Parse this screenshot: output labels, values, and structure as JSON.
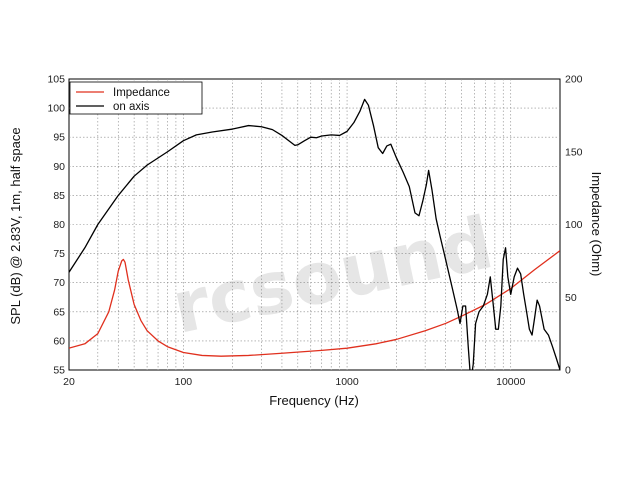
{
  "chart_data": {
    "type": "line",
    "xlabel": "Frequency (Hz)",
    "ylabel": "SPL (dB) @ 2.83V, 1m, half space",
    "y2label": "Impedance (Ohm)",
    "xscale": "log",
    "xlim": [
      20,
      20000
    ],
    "ylim": [
      55,
      105
    ],
    "y2lim": [
      0,
      200
    ],
    "x_ticks": [
      20,
      100,
      1000,
      10000
    ],
    "x_tick_labels": [
      "20",
      "100",
      "1000",
      "10000"
    ],
    "y_ticks": [
      55,
      60,
      65,
      70,
      75,
      80,
      85,
      90,
      95,
      100,
      105
    ],
    "y2_ticks": [
      0,
      50,
      100,
      150,
      200
    ],
    "grid": true,
    "legend_position": "top-left",
    "watermark": "rcsound",
    "colors": {
      "Impedance": "#e0301e",
      "on axis": "#000000"
    },
    "series": [
      {
        "name": "Impedance",
        "axis": "right",
        "points": [
          [
            20,
            15
          ],
          [
            25,
            18
          ],
          [
            30,
            25
          ],
          [
            35,
            40
          ],
          [
            38,
            55
          ],
          [
            40,
            68
          ],
          [
            42,
            75
          ],
          [
            43,
            76
          ],
          [
            44,
            74
          ],
          [
            46,
            62
          ],
          [
            50,
            45
          ],
          [
            55,
            34
          ],
          [
            60,
            27
          ],
          [
            70,
            20
          ],
          [
            80,
            16
          ],
          [
            100,
            12
          ],
          [
            130,
            10
          ],
          [
            170,
            9.5
          ],
          [
            250,
            10
          ],
          [
            400,
            11.5
          ],
          [
            700,
            13.5
          ],
          [
            1000,
            15
          ],
          [
            1500,
            18
          ],
          [
            2000,
            21
          ],
          [
            3000,
            27
          ],
          [
            4000,
            32
          ],
          [
            5000,
            37
          ],
          [
            7000,
            45
          ],
          [
            10000,
            56
          ],
          [
            14000,
            69
          ],
          [
            20000,
            82
          ]
        ]
      },
      {
        "name": "on axis",
        "axis": "left",
        "points": [
          [
            20,
            71.8
          ],
          [
            25,
            76
          ],
          [
            30,
            80
          ],
          [
            40,
            85
          ],
          [
            50,
            88.3
          ],
          [
            60,
            90.2
          ],
          [
            80,
            92.5
          ],
          [
            100,
            94.4
          ],
          [
            120,
            95.4
          ],
          [
            150,
            95.9
          ],
          [
            200,
            96.4
          ],
          [
            250,
            97
          ],
          [
            300,
            96.8
          ],
          [
            350,
            96.3
          ],
          [
            400,
            95.3
          ],
          [
            450,
            94.2
          ],
          [
            480,
            93.6
          ],
          [
            500,
            93.7
          ],
          [
            550,
            94.4
          ],
          [
            600,
            95
          ],
          [
            650,
            94.9
          ],
          [
            700,
            95.2
          ],
          [
            800,
            95.4
          ],
          [
            900,
            95.3
          ],
          [
            1000,
            96
          ],
          [
            1100,
            97.5
          ],
          [
            1200,
            99.5
          ],
          [
            1280,
            101.5
          ],
          [
            1350,
            100.5
          ],
          [
            1450,
            97
          ],
          [
            1550,
            93.2
          ],
          [
            1650,
            92.2
          ],
          [
            1750,
            93.5
          ],
          [
            1850,
            93.8
          ],
          [
            2000,
            91.5
          ],
          [
            2200,
            89
          ],
          [
            2400,
            86.5
          ],
          [
            2600,
            82
          ],
          [
            2750,
            81.5
          ],
          [
            2900,
            84
          ],
          [
            3050,
            86.8
          ],
          [
            3150,
            89.3
          ],
          [
            3300,
            86
          ],
          [
            3500,
            81
          ],
          [
            3700,
            78
          ],
          [
            4000,
            74
          ],
          [
            4400,
            69
          ],
          [
            4700,
            65.5
          ],
          [
            4900,
            63
          ],
          [
            5100,
            66
          ],
          [
            5300,
            66
          ],
          [
            5500,
            59
          ],
          [
            5700,
            53
          ],
          [
            5900,
            56
          ],
          [
            6100,
            63
          ],
          [
            6400,
            65
          ],
          [
            6800,
            66
          ],
          [
            7200,
            68
          ],
          [
            7500,
            71
          ],
          [
            7800,
            66.5
          ],
          [
            8100,
            62
          ],
          [
            8400,
            62
          ],
          [
            8700,
            66
          ],
          [
            9000,
            74
          ],
          [
            9300,
            76
          ],
          [
            9600,
            71
          ],
          [
            10000,
            68
          ],
          [
            10500,
            71
          ],
          [
            11000,
            72.5
          ],
          [
            11500,
            71.5
          ],
          [
            12000,
            68
          ],
          [
            12500,
            65
          ],
          [
            13000,
            62
          ],
          [
            13500,
            61
          ],
          [
            14000,
            64
          ],
          [
            14500,
            67
          ],
          [
            15000,
            66
          ],
          [
            16000,
            62
          ],
          [
            17000,
            61
          ],
          [
            18000,
            59
          ],
          [
            19000,
            57
          ],
          [
            20000,
            55
          ]
        ]
      }
    ]
  }
}
